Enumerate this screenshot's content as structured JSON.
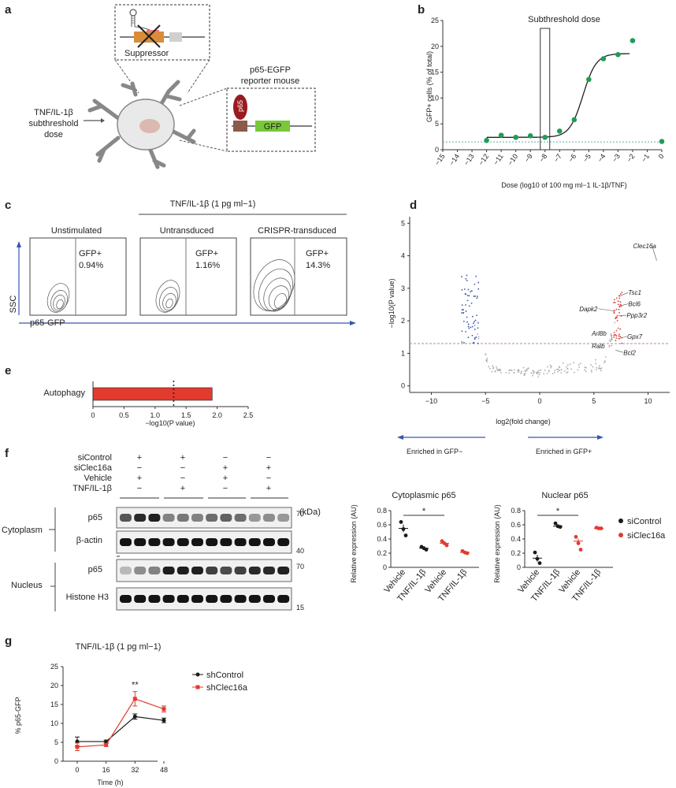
{
  "panel_labels": {
    "a": "a",
    "b": "b",
    "c": "c",
    "d": "d",
    "e": "e",
    "f": "f",
    "g": "g"
  },
  "panel_a": {
    "suppressor_label": "Suppressor",
    "reporter_line1": "p65-EGFP",
    "reporter_line2": "reporter mouse",
    "stim_line1": "TNF/IL-1β",
    "stim_line2": "subthreshold",
    "stim_line3": "dose",
    "p65_label": "p65",
    "gfp_label": "GFP"
  },
  "panel_b": {
    "chart_data": {
      "type": "scatter",
      "title": "Subthreshold dose",
      "xlabel": "Dose (log10 of 100 mg ml−1 IL-1β/TNF)",
      "ylabel": "GFP+ cells (% of total)",
      "x_ticks": [
        "−15",
        "−14",
        "−13",
        "−12",
        "−11",
        "−10",
        "−9",
        "−8",
        "−7",
        "−6",
        "−5",
        "−4",
        "−3",
        "−2",
        "−1",
        "0"
      ],
      "y_ticks": [
        "0",
        "5",
        "10",
        "15",
        "20",
        "25"
      ],
      "xlim": [
        -15,
        0
      ],
      "ylim": [
        0,
        25
      ],
      "x": [
        -12,
        -11,
        -10,
        -9,
        -8,
        -7,
        -6,
        -5,
        -4,
        -3,
        -2,
        0
      ],
      "y": [
        1.8,
        2.8,
        2.4,
        2.7,
        2.4,
        3.6,
        5.8,
        13.6,
        17.6,
        18.4,
        21.1,
        1.6
      ],
      "highlight_x": -8,
      "baseline_y": 1.5
    }
  },
  "panel_c": {
    "header": "TNF/IL-1β (1 pg ml−1)",
    "plots": [
      {
        "title": "Unstimulated",
        "gate": "GFP+",
        "pct": "0.94%"
      },
      {
        "title": "Untransduced",
        "gate": "GFP+",
        "pct": "1.16%"
      },
      {
        "title": "CRISPR-transduced",
        "gate": "GFP+",
        "pct": "14.3%"
      }
    ],
    "y_axis": "SSC",
    "x_axis": "p65-GFP"
  },
  "panel_d": {
    "chart_data": {
      "type": "scatter",
      "xlabel": "log2(fold change)",
      "ylabel": "−log10(P value)",
      "x_ticks": [
        "−10",
        "−5",
        "0",
        "5",
        "10"
      ],
      "y_ticks": [
        "0",
        "1",
        "2",
        "3",
        "4",
        "5"
      ],
      "xlim": [
        -12,
        12
      ],
      "ylim": [
        -0.2,
        5.2
      ],
      "threshold_y": 1.3,
      "genes": [
        {
          "name": "Clec16a",
          "x": 10.8,
          "y": 3.85
        },
        {
          "name": "Tsc1",
          "x": 7.3,
          "y": 2.75
        },
        {
          "name": "Bcl6",
          "x": 7.3,
          "y": 2.45
        },
        {
          "name": "Dapk2",
          "x": 7.0,
          "y": 2.3
        },
        {
          "name": "Ppp3r2",
          "x": 7.3,
          "y": 2.15
        },
        {
          "name": "Gpx7",
          "x": 7.2,
          "y": 1.45
        },
        {
          "name": "Arl8b",
          "x": 6.7,
          "y": 1.4
        },
        {
          "name": "Ralb",
          "x": 6.7,
          "y": 1.25
        },
        {
          "name": "Bcl2",
          "x": 7.0,
          "y": 1.1
        }
      ]
    },
    "left_arrow": "Enriched in GFP−",
    "right_arrow": "Enriched in GFP+"
  },
  "panel_e": {
    "chart_data": {
      "type": "bar",
      "categories": [
        "Autophagy"
      ],
      "values": [
        1.92
      ],
      "xlabel": "−log10(P value)",
      "x_ticks": [
        "0",
        "0.5",
        "1.0",
        "1.5",
        "2.0",
        "2.5"
      ],
      "xlim": [
        0,
        2.5
      ]
    }
  },
  "panel_f": {
    "rows": [
      "siControl",
      "siClec16a",
      "Vehicle",
      "TNF/IL-1β"
    ],
    "signs": [
      [
        "+",
        "+",
        "−",
        "−"
      ],
      [
        "−",
        "−",
        "+",
        "+"
      ],
      [
        "+",
        "−",
        "+",
        "−"
      ],
      [
        "−",
        "+",
        "−",
        "+"
      ]
    ],
    "kda": "(kDa)",
    "blots": [
      {
        "label": "p65",
        "marker": "70"
      },
      {
        "label": "β-actin",
        "marker": "40"
      },
      {
        "label": "p65",
        "marker": "70"
      },
      {
        "label": "Histone H3",
        "marker": "15"
      }
    ],
    "compartments": [
      "Cytoplasm",
      "Nucleus"
    ],
    "charts": [
      {
        "title": "Cytoplasmic p65",
        "ylabel": "Relative expression (AU)",
        "y_ticks": [
          "0",
          "0.2",
          "0.4",
          "0.6",
          "0.8"
        ],
        "ylim": [
          0,
          0.8
        ],
        "categories": [
          "Vehicle",
          "TNF/IL-1β",
          "Vehicle",
          "TNF/IL-1β"
        ],
        "means": [
          0.55,
          0.27,
          0.34,
          0.21
        ],
        "points": [
          [
            0.64,
            0.54,
            0.45
          ],
          [
            0.29,
            0.27,
            0.25
          ],
          [
            0.37,
            0.34,
            0.31
          ],
          [
            0.23,
            0.21,
            0.2
          ]
        ],
        "sig": "*",
        "sig_pair": [
          0,
          2
        ]
      },
      {
        "title": "Nuclear p65",
        "ylabel": "Relative expression (AU)",
        "y_ticks": [
          "0",
          "0.2",
          "0.4",
          "0.6",
          "0.8"
        ],
        "ylim": [
          0,
          0.8
        ],
        "categories": [
          "Vehicle",
          "TNF/IL-1β",
          "Vehicle",
          "TNF/IL-1β"
        ],
        "means": [
          0.13,
          0.58,
          0.37,
          0.55
        ],
        "points": [
          [
            0.21,
            0.12,
            0.06
          ],
          [
            0.62,
            0.58,
            0.57
          ],
          [
            0.43,
            0.34,
            0.25
          ],
          [
            0.56,
            0.55,
            0.55
          ]
        ],
        "sig": "*",
        "sig_pair": [
          0,
          2
        ]
      }
    ],
    "legend": [
      "siControl",
      "siClec16a"
    ]
  },
  "panel_g": {
    "chart_data": {
      "type": "line",
      "title": "TNF/IL-1β (1 pg ml−1)",
      "xlabel": "Time (h)",
      "ylabel": "% p65-GFP",
      "x": [
        0,
        16,
        32,
        48
      ],
      "xlim": [
        0,
        48
      ],
      "ylim": [
        0,
        25
      ],
      "y_ticks": [
        "0",
        "5",
        "10",
        "15",
        "20",
        "25"
      ],
      "x_ticks": [
        "0",
        "16",
        "32",
        "48"
      ],
      "series": [
        {
          "name": "shControl",
          "values": [
            5.2,
            5.2,
            11.8,
            10.8
          ],
          "err": [
            1.2,
            0.4,
            0.7,
            0.6
          ]
        },
        {
          "name": "shClec16a",
          "values": [
            3.8,
            4.3,
            16.5,
            13.8
          ],
          "err": [
            1.0,
            0.4,
            1.9,
            0.8
          ]
        }
      ],
      "annotation": "**"
    }
  },
  "colors": {
    "green": "#1f9d55",
    "red": "#e23b2e",
    "blue": "#3a55b0",
    "black": "#1a1a1a",
    "orange_box": "#d98c3a",
    "gfp_green": "#78c83a",
    "p65_red": "#9a1b1e"
  }
}
